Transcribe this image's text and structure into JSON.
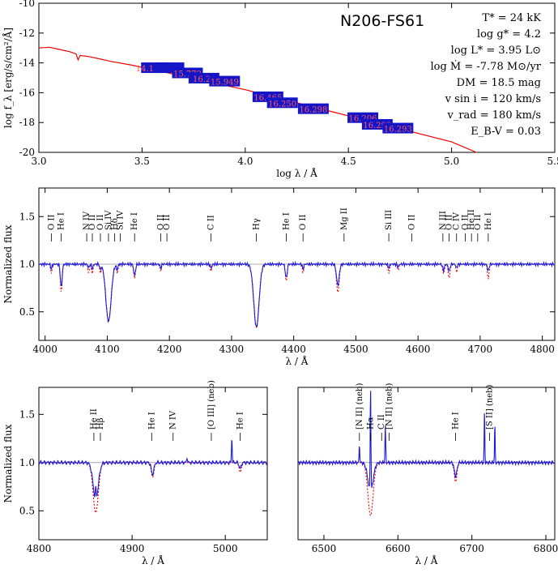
{
  "chart_data": [
    {
      "type": "line",
      "panel": "sed",
      "title": "N206-FS61",
      "xlabel": "log λ / Å",
      "ylabel": "log f_λ [erg/s/cm²/Å]",
      "xlim": [
        3.0,
        5.5
      ],
      "ylim": [
        -20,
        -10
      ],
      "xticks": [
        "3.0",
        "3.5",
        "4.0",
        "4.5",
        "5.0",
        "5.5"
      ],
      "yticks": [
        "-10",
        "-12",
        "-14",
        "-16",
        "-18",
        "-20"
      ],
      "stellar_params": [
        "T* = 24 kK",
        "log g* = 4.2",
        "log L* = 3.95 L⊙",
        "log Ṁ = -7.78 M⊙/yr",
        "DM = 18.5 mag",
        "v sin i = 120 km/s",
        "v_rad = 180 km/s",
        "E_B-V = 0.03"
      ],
      "model_sed": {
        "x": [
          3.0,
          3.05,
          3.1,
          3.15,
          3.18,
          3.19,
          3.2,
          3.25,
          3.3,
          3.35,
          3.45,
          3.6,
          3.8,
          4.0,
          4.2,
          4.4,
          4.6,
          4.8,
          5.0,
          5.12
        ],
        "y": [
          -13.0,
          -12.95,
          -13.1,
          -13.25,
          -13.4,
          -13.8,
          -13.5,
          -13.6,
          -13.75,
          -13.9,
          -14.15,
          -14.6,
          -15.2,
          -15.8,
          -16.5,
          -17.2,
          -17.9,
          -18.6,
          -19.3,
          -20.0
        ]
      },
      "photometry": [
        {
          "x": 3.57,
          "y": -14.35,
          "label": "14.15.574"
        },
        {
          "x": 3.63,
          "y": -14.35,
          "label": ""
        },
        {
          "x": 3.72,
          "y": -14.7,
          "label": "15.772"
        },
        {
          "x": 3.8,
          "y": -15.05,
          "label": "16.2?"
        },
        {
          "x": 3.9,
          "y": -15.25,
          "label": "15.949"
        },
        {
          "x": 4.11,
          "y": -16.3,
          "label": "16.465"
        },
        {
          "x": 4.18,
          "y": -16.7,
          "label": "16.250"
        },
        {
          "x": 4.33,
          "y": -17.1,
          "label": "16.298"
        },
        {
          "x": 4.57,
          "y": -17.7,
          "label": "16.206"
        },
        {
          "x": 4.64,
          "y": -18.15,
          "label": "16.292"
        },
        {
          "x": 4.74,
          "y": -18.4,
          "label": "16.293"
        }
      ]
    },
    {
      "type": "line",
      "panel": "blue",
      "xlabel": "λ / Å",
      "ylabel": "Normalized flux",
      "xlim": [
        3990,
        4820
      ],
      "ylim": [
        0.2,
        1.8
      ],
      "xticks": [
        "4000",
        "4100",
        "4200",
        "4300",
        "4400",
        "4500",
        "4600",
        "4700",
        "4800"
      ],
      "yticks": [
        "0.5",
        "1.0",
        "1.5"
      ],
      "lines": [
        {
          "x": 4010,
          "center": 1.0,
          "depth_obs": 0.05,
          "depth_mod": 0.1,
          "width": 1.5
        },
        {
          "x": 4026,
          "center": 1.0,
          "depth_obs": 0.25,
          "depth_mod": 0.3,
          "width": 2
        },
        {
          "x": 4070,
          "center": 1.0,
          "depth_obs": 0.04,
          "depth_mod": 0.1,
          "width": 1.5
        },
        {
          "x": 4076,
          "center": 1.0,
          "depth_obs": 0.05,
          "depth_mod": 0.11,
          "width": 1.5
        },
        {
          "x": 4089,
          "center": 1.0,
          "depth_obs": 0.05,
          "depth_mod": 0.1,
          "width": 1.5
        },
        {
          "x": 4102,
          "center": 1.0,
          "depth_obs": 0.6,
          "depth_mod": 0.6,
          "width": 6
        },
        {
          "x": 4116,
          "center": 1.0,
          "depth_obs": 0.06,
          "depth_mod": 0.1,
          "width": 1.5
        },
        {
          "x": 4144,
          "center": 1.0,
          "depth_obs": 0.12,
          "depth_mod": 0.15,
          "width": 2
        },
        {
          "x": 4186,
          "center": 1.0,
          "depth_obs": 0.04,
          "depth_mod": 0.07,
          "width": 1.5
        },
        {
          "x": 4267,
          "center": 1.0,
          "depth_obs": 0.04,
          "depth_mod": 0.08,
          "width": 1.5
        },
        {
          "x": 4340,
          "center": 1.0,
          "depth_obs": 0.66,
          "depth_mod": 0.66,
          "width": 6
        },
        {
          "x": 4388,
          "center": 1.0,
          "depth_obs": 0.15,
          "depth_mod": 0.18,
          "width": 2
        },
        {
          "x": 4415,
          "center": 1.0,
          "depth_obs": 0.05,
          "depth_mod": 0.1,
          "width": 1.5
        },
        {
          "x": 4471,
          "center": 1.0,
          "depth_obs": 0.22,
          "depth_mod": 0.3,
          "width": 3
        },
        {
          "x": 4553,
          "center": 1.0,
          "depth_obs": 0.04,
          "depth_mod": 0.1,
          "width": 1.5
        },
        {
          "x": 4568,
          "center": 1.0,
          "depth_obs": 0.03,
          "depth_mod": 0.07,
          "width": 1.5
        },
        {
          "x": 4641,
          "center": 1.0,
          "depth_obs": 0.06,
          "depth_mod": 0.1,
          "width": 2
        },
        {
          "x": 4650,
          "center": 1.0,
          "depth_obs": 0.07,
          "depth_mod": 0.15,
          "width": 2
        },
        {
          "x": 4662,
          "center": 1.0,
          "depth_obs": 0.04,
          "depth_mod": 0.09,
          "width": 1.5
        },
        {
          "x": 4713,
          "center": 1.0,
          "depth_obs": 0.07,
          "depth_mod": 0.16,
          "width": 1.8
        }
      ],
      "annotations": [
        {
          "x": 4010,
          "text": "O II",
          "bracket": true
        },
        {
          "x": 4026,
          "text": "He I"
        },
        {
          "x": 4067,
          "text": "N IV"
        },
        {
          "x": 4076,
          "text": "O II"
        },
        {
          "x": 4089,
          "text": "O II"
        },
        {
          "x": 4102,
          "text": "Si IV"
        },
        {
          "x": 4112,
          "text": "Hδ"
        },
        {
          "x": 4121,
          "text": "Si IV"
        },
        {
          "x": 4144,
          "text": "He I"
        },
        {
          "x": 4186,
          "text": "O II"
        },
        {
          "x": 4196,
          "text": "O II"
        },
        {
          "x": 4267,
          "text": "C II"
        },
        {
          "x": 4340,
          "text": "Hγ"
        },
        {
          "x": 4388,
          "text": "He I"
        },
        {
          "x": 4415,
          "text": "O II"
        },
        {
          "x": 4481,
          "text": "Mg II"
        },
        {
          "x": 4553,
          "text": "Si III"
        },
        {
          "x": 4590,
          "text": "O II"
        },
        {
          "x": 4640,
          "text": "N III"
        },
        {
          "x": 4650,
          "text": "O II"
        },
        {
          "x": 4662,
          "text": "C IV"
        },
        {
          "x": 4676,
          "text": "O II"
        },
        {
          "x": 4686,
          "text": "He II"
        },
        {
          "x": 4696,
          "text": "O II"
        },
        {
          "x": 4713,
          "text": "He I"
        }
      ]
    },
    {
      "type": "line",
      "panel": "hbeta",
      "xlabel": "λ / Å",
      "ylabel": "Normalized flux",
      "xlim": [
        4800,
        5045
      ],
      "ylim": [
        0.2,
        1.78
      ],
      "xticks": [
        "4800",
        "4900",
        "5000"
      ],
      "yticks": [
        "0.5",
        "1.0",
        "1.5"
      ],
      "lines": [
        {
          "x": 4861,
          "center": 1.0,
          "depth_obs": 0.38,
          "depth_mod": 0.52,
          "width": 4,
          "emission": 0.12
        },
        {
          "x": 4922,
          "center": 1.0,
          "depth_obs": 0.12,
          "depth_mod": 0.15,
          "width": 2
        },
        {
          "x": 4959,
          "center": 1.0,
          "depth_obs": -0.06,
          "depth_mod": 0.0,
          "width": 0.6
        },
        {
          "x": 5007,
          "center": 1.0,
          "depth_obs": -0.25,
          "depth_mod": 0.0,
          "width": 0.6
        },
        {
          "x": 5016,
          "center": 1.0,
          "depth_obs": 0.06,
          "depth_mod": 0.1,
          "width": 1.6
        }
      ],
      "annotations": [
        {
          "x": 4859,
          "text": "He II"
        },
        {
          "x": 4866,
          "text": "Hβ"
        },
        {
          "x": 4921,
          "text": "He I"
        },
        {
          "x": 4944,
          "text": "N IV"
        },
        {
          "x": 4985,
          "text": "[O III] (neb)"
        },
        {
          "x": 5016,
          "text": "He I"
        }
      ]
    },
    {
      "type": "line",
      "panel": "halpha",
      "xlabel": "λ / Å",
      "ylabel": "",
      "xlim": [
        6465,
        6812
      ],
      "ylim": [
        0.2,
        1.78
      ],
      "xticks": [
        "6500",
        "6600",
        "6700",
        "6800"
      ],
      "yticks": [],
      "lines": [
        {
          "x": 6563,
          "center": 1.0,
          "depth_obs": 0.3,
          "depth_mod": 0.55,
          "width": 5,
          "emission": 1.1
        },
        {
          "x": 6548,
          "center": 1.0,
          "depth_obs": -0.2,
          "depth_mod": 0.0,
          "width": 0.6
        },
        {
          "x": 6583,
          "center": 1.0,
          "depth_obs": -0.38,
          "depth_mod": 0.0,
          "width": 0.7
        },
        {
          "x": 6678,
          "center": 1.0,
          "depth_obs": 0.14,
          "depth_mod": 0.2,
          "width": 2.5
        },
        {
          "x": 6717,
          "center": 1.0,
          "depth_obs": -0.55,
          "depth_mod": 0.0,
          "width": 0.6
        },
        {
          "x": 6731,
          "center": 1.0,
          "depth_obs": -0.4,
          "depth_mod": 0.0,
          "width": 0.6
        }
      ],
      "annotations": [
        {
          "x": 6548,
          "text": "[N II] (neb)"
        },
        {
          "x": 6563,
          "text": "Hα"
        },
        {
          "x": 6578,
          "text": "C II"
        },
        {
          "x": 6588,
          "text": "[N II] (neb)"
        },
        {
          "x": 6678,
          "text": "He I"
        },
        {
          "x": 6724,
          "text": "[S II] (neb)"
        }
      ]
    }
  ]
}
